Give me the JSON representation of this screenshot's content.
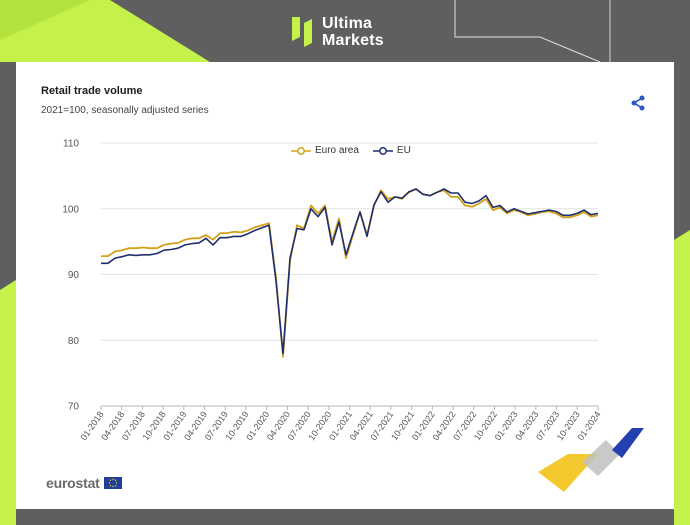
{
  "brand": {
    "line1": "Ultima",
    "line2": "Markets"
  },
  "share_icon": "share-icon",
  "colors": {
    "euro_area": "#d4a017",
    "eu": "#1f2f6e",
    "brand_lime": "#c4f24a",
    "grid": "#e4e4e4"
  },
  "footer": {
    "logo_text": "eurostat"
  },
  "chart_data": {
    "type": "line",
    "title": "Retail trade volume",
    "subtitle": "2021=100, seasonally adjusted series",
    "xlabel": "",
    "ylabel": "",
    "ylim": [
      70,
      110
    ],
    "yticks": [
      110,
      100,
      90,
      80,
      70
    ],
    "xtick_labels": [
      "01-2018",
      "04-2018",
      "07-2018",
      "10-2018",
      "01-2019",
      "04-2019",
      "07-2019",
      "10-2019",
      "01-2020",
      "04-2020",
      "07-2020",
      "10-2020",
      "01-2021",
      "04-2021",
      "07-2021",
      "10-2021",
      "01-2022",
      "04-2022",
      "07-2022",
      "10-2022",
      "01-2023",
      "04-2023",
      "07-2023",
      "10-2023",
      "01-2024"
    ],
    "legend_position": "top-center",
    "grid": true,
    "series": [
      {
        "name": "Euro area",
        "color": "#d4a017",
        "values": [
          92.8,
          92.8,
          93.5,
          93.7,
          94.0,
          94.0,
          94.1,
          94.0,
          94.0,
          94.5,
          94.7,
          94.8,
          95.3,
          95.5,
          95.5,
          96.0,
          95.3,
          96.3,
          96.3,
          96.5,
          96.4,
          96.7,
          97.2,
          97.5,
          97.8,
          89.5,
          77.5,
          92.0,
          97.5,
          97.0,
          100.5,
          99.3,
          100.5,
          95.0,
          98.5,
          92.5,
          96.0,
          99.5,
          96.0,
          100.5,
          102.8,
          101.5,
          101.8,
          101.5,
          102.5,
          103.0,
          102.2,
          102.0,
          102.5,
          102.8,
          101.8,
          101.8,
          100.5,
          100.3,
          100.8,
          101.5,
          99.8,
          100.2,
          99.3,
          99.8,
          99.5,
          99.0,
          99.2,
          99.5,
          99.6,
          99.3,
          98.7,
          98.7,
          99.0,
          99.5,
          98.8,
          99.0
        ]
      },
      {
        "name": "EU",
        "color": "#1f2f6e",
        "values": [
          91.7,
          91.7,
          92.5,
          92.7,
          93.0,
          92.9,
          93.0,
          93.0,
          93.2,
          93.7,
          93.8,
          94.0,
          94.5,
          94.7,
          94.8,
          95.5,
          94.5,
          95.6,
          95.6,
          95.8,
          95.8,
          96.2,
          96.7,
          97.1,
          97.5,
          89.0,
          78.0,
          92.5,
          97.0,
          96.8,
          100.0,
          98.8,
          100.2,
          94.5,
          98.0,
          93.0,
          96.3,
          99.5,
          95.8,
          100.6,
          102.6,
          101.0,
          101.8,
          101.6,
          102.6,
          103.0,
          102.2,
          102.0,
          102.5,
          103.0,
          102.4,
          102.4,
          101.0,
          100.8,
          101.2,
          102.0,
          100.2,
          100.5,
          99.5,
          100.0,
          99.6,
          99.2,
          99.4,
          99.6,
          99.8,
          99.6,
          99.0,
          99.0,
          99.3,
          99.8,
          99.1,
          99.3
        ]
      }
    ]
  }
}
